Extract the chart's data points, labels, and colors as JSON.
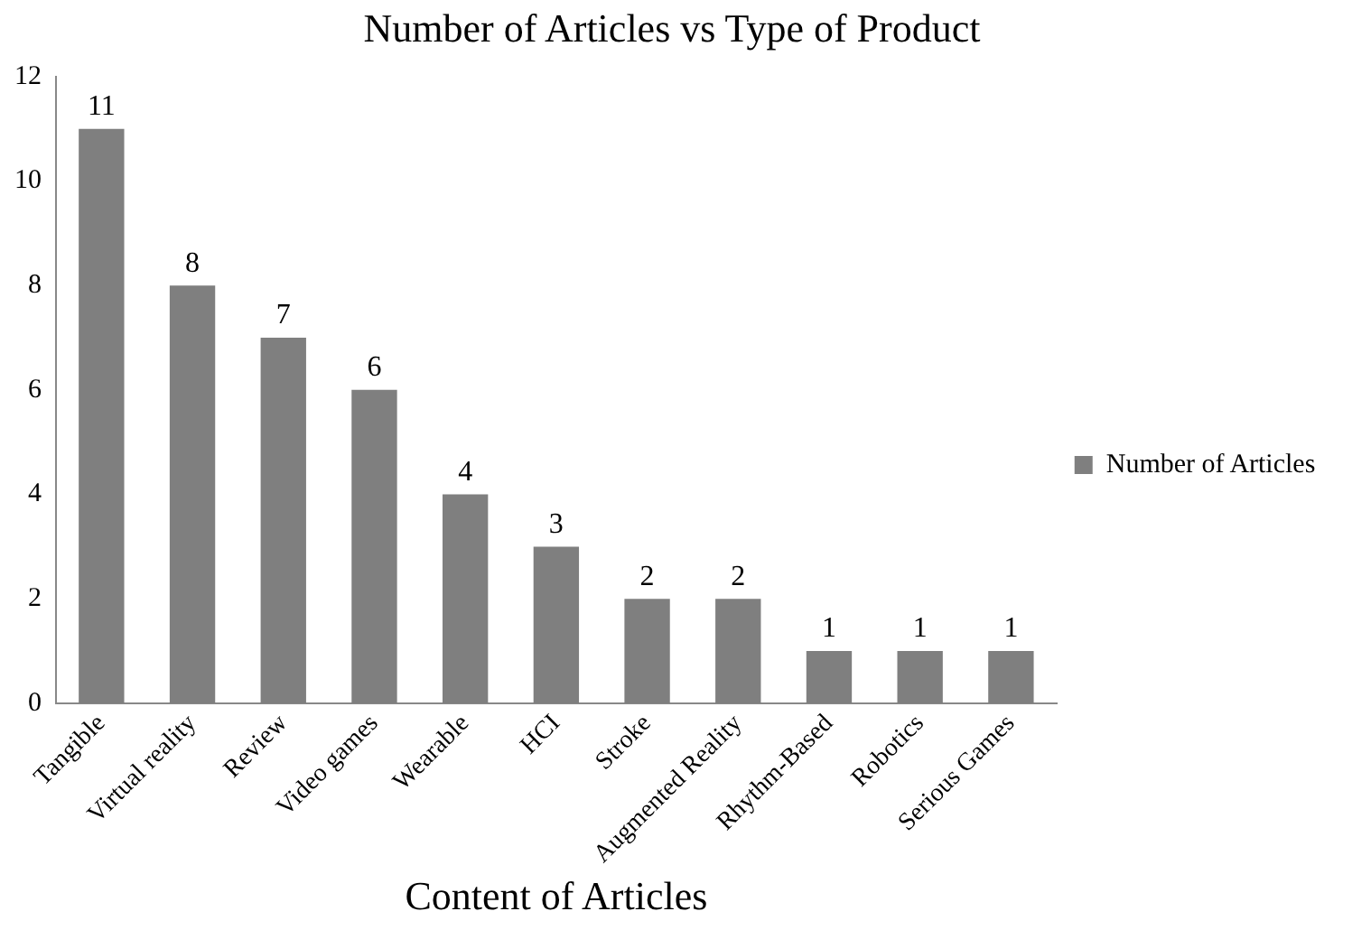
{
  "chart_data": {
    "type": "bar",
    "title": "Number of Articles vs Type of Product",
    "xlabel": "Content of Articles",
    "categories": [
      "Tangible",
      "Virtual reality",
      "Review",
      "Video games",
      "Wearable",
      "HCI",
      "Stroke",
      "Augmented Reality",
      "Rhythm-Based",
      "Robotics",
      "Serious Games"
    ],
    "series": [
      {
        "name": "Number of Articles",
        "color": "#7f7f7f",
        "values": [
          11,
          8,
          7,
          6,
          4,
          3,
          2,
          2,
          1,
          1,
          1
        ]
      }
    ],
    "ylim": [
      0,
      12
    ],
    "yticks": [
      0,
      2,
      4,
      6,
      8,
      10,
      12
    ],
    "grid": false,
    "legend": "right",
    "data_labels": true
  }
}
